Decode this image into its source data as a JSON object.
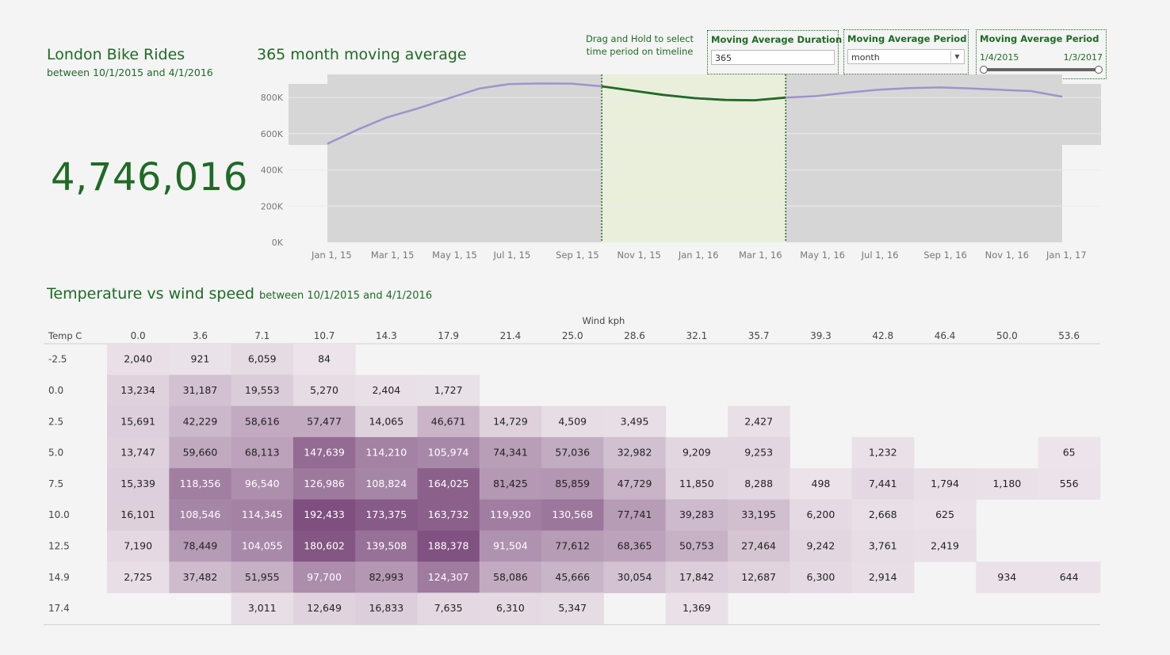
{
  "header": {
    "title": "London Bike Rides",
    "subtitle": "between 10/1/2015 and 4/1/2016",
    "total": "4,746,016"
  },
  "controls": {
    "hint": "Drag and Hold to select time period on timeline",
    "duration_label": "Moving Average Duration",
    "duration_value": "365",
    "period_label": "Moving Average Period",
    "period_value": "month",
    "range_label": "Moving Average Period",
    "range_start": "1/4/2015",
    "range_end": "1/3/2017"
  },
  "colors": {
    "accent": "#1e6b24",
    "line": "#9e93cc",
    "selection": "#e9efdb",
    "heat_low": "#ece4ea",
    "heat_high": "#7e4f7f"
  },
  "chart_data": [
    {
      "type": "line",
      "title": "365 month moving average",
      "x": [
        "2015-01-01",
        "2015-02-01",
        "2015-03-01",
        "2015-04-01",
        "2015-05-01",
        "2015-06-01",
        "2015-07-01",
        "2015-08-01",
        "2015-09-01",
        "2015-10-01",
        "2015-11-01",
        "2015-12-01",
        "2016-01-01",
        "2016-02-01",
        "2016-03-01",
        "2016-04-01",
        "2016-05-01",
        "2016-06-01",
        "2016-07-01",
        "2016-08-01",
        "2016-09-01",
        "2016-10-01",
        "2016-11-01",
        "2016-12-01",
        "2017-01-01"
      ],
      "values": [
        545000,
        625000,
        690000,
        740000,
        795000,
        850000,
        875000,
        878000,
        877000,
        862000,
        838000,
        815000,
        797000,
        787000,
        785000,
        800000,
        808000,
        827000,
        843000,
        852000,
        856000,
        851000,
        843000,
        836000,
        805000
      ],
      "x_ticks": [
        "Jan 1, 15",
        "Mar 1, 15",
        "May 1, 15",
        "Jul 1, 15",
        "Sep 1, 15",
        "Nov 1, 15",
        "Jan 1, 16",
        "Mar 1, 16",
        "May 1, 16",
        "Jul 1, 16",
        "Sep 1, 16",
        "Nov 1, 16",
        "Jan 1, 17"
      ],
      "y_ticks": [
        "0K",
        "200K",
        "400K",
        "600K",
        "800K"
      ],
      "ylim": [
        0,
        900000
      ],
      "highlight_range": [
        "2015-10-01",
        "2016-04-01"
      ],
      "grid": true
    },
    {
      "type": "heatmap",
      "title": "Temperature vs wind speed",
      "subtitle": "between 10/1/2015 and 4/1/2016",
      "x_label": "Wind kph",
      "y_label": "Temp C",
      "columns": [
        "0.0",
        "3.6",
        "7.1",
        "10.7",
        "14.3",
        "17.9",
        "21.4",
        "25.0",
        "28.6",
        "32.1",
        "35.7",
        "39.3",
        "42.8",
        "46.4",
        "50.0",
        "53.6"
      ],
      "rows": [
        "-2.5",
        "0.0",
        "2.5",
        "5.0",
        "7.5",
        "10.0",
        "12.5",
        "14.9",
        "17.4"
      ],
      "values": [
        [
          2040,
          921,
          6059,
          84,
          null,
          null,
          null,
          null,
          null,
          null,
          null,
          null,
          null,
          null,
          null,
          null
        ],
        [
          13234,
          31187,
          19553,
          5270,
          2404,
          1727,
          null,
          null,
          null,
          null,
          null,
          null,
          null,
          null,
          null,
          null
        ],
        [
          15691,
          42229,
          58616,
          57477,
          14065,
          46671,
          14729,
          4509,
          3495,
          null,
          2427,
          null,
          null,
          null,
          null,
          null
        ],
        [
          13747,
          59660,
          68113,
          147639,
          114210,
          105974,
          74341,
          57036,
          32982,
          9209,
          9253,
          null,
          1232,
          null,
          null,
          65
        ],
        [
          15339,
          118356,
          96540,
          126986,
          108824,
          164025,
          81425,
          85859,
          47729,
          11850,
          8288,
          498,
          7441,
          1794,
          1180,
          556
        ],
        [
          16101,
          108546,
          114345,
          192433,
          173375,
          163732,
          119920,
          130568,
          77741,
          39283,
          33195,
          6200,
          2668,
          625,
          null,
          null
        ],
        [
          7190,
          78449,
          104055,
          180602,
          139508,
          188378,
          91504,
          77612,
          68365,
          50753,
          27464,
          9242,
          3761,
          2419,
          null,
          null
        ],
        [
          2725,
          37482,
          51955,
          97700,
          82993,
          124307,
          58086,
          45666,
          30054,
          17842,
          12687,
          6300,
          2914,
          null,
          934,
          644
        ],
        [
          null,
          null,
          3011,
          12649,
          16833,
          7635,
          6310,
          5347,
          null,
          1369,
          null,
          null,
          null,
          null,
          null,
          null
        ]
      ],
      "value_range": [
        0,
        192433
      ]
    }
  ]
}
